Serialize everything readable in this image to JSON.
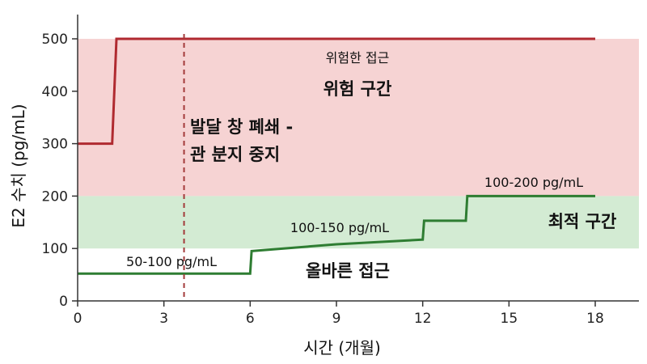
{
  "chart_data": {
    "type": "line",
    "xlabel": "시간 (개월)",
    "ylabel": "E2 수치 (pg/mL)",
    "xlim": [
      0,
      19
    ],
    "ylim": [
      0,
      500
    ],
    "xticks": [
      0,
      3,
      6,
      9,
      12,
      15,
      18
    ],
    "yticks": [
      0,
      100,
      200,
      300,
      400,
      500
    ],
    "bands": [
      {
        "from": 200,
        "to": 500,
        "color": "#f6d3d3"
      },
      {
        "from": 100,
        "to": 200,
        "color": "#d3ebd3"
      }
    ],
    "series": [
      {
        "color": "#b02a30",
        "x": [
          0,
          1.2,
          1.35,
          18
        ],
        "y": [
          300,
          300,
          500,
          500
        ]
      },
      {
        "color": "#2e7d32",
        "x": [
          0,
          6.0,
          6.05,
          9,
          12.0,
          12.05,
          13.5,
          13.55,
          18
        ],
        "y": [
          52,
          52,
          95,
          108,
          117,
          153,
          153,
          200,
          200
        ]
      }
    ],
    "vline": {
      "x": 3.7,
      "color": "#a33a3a"
    },
    "annotations": {
      "danger_approach": "위험한 접근",
      "danger_zone": "위험 구간",
      "window_line1": "발달 창 폐쇄 -",
      "window_line2": "관 분지 중지",
      "optimal_zone": "최적 구간",
      "correct_approach": "올바른 접근",
      "range_low": "50-100 pg/mL",
      "range_mid": "100-150 pg/mL",
      "range_high": "100-200 pg/mL"
    }
  }
}
